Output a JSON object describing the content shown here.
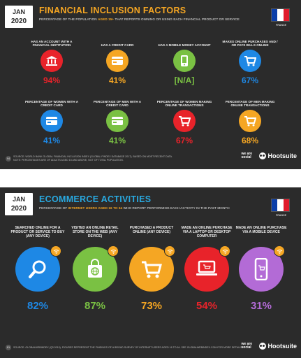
{
  "slide1": {
    "date_month": "JAN",
    "date_year": "2020",
    "title": "FINANCIAL INCLUSION FACTORS",
    "subtitle_a": "PERCENTAGE OF THE POPULATION ",
    "subtitle_hl": "AGED 15+",
    "subtitle_b": " THAT REPORTS OWNING OR USING EACH FINANCIAL PRODUCT OR SERVICE",
    "flag_label": "FRANCE",
    "items": [
      {
        "label": "HAS AN ACCOUNT WITH A FINANCIAL INSTITUTION",
        "value": "94%",
        "icon": "bank-icon",
        "color": "#e8232a"
      },
      {
        "label": "HAS A CREDIT CARD",
        "value": "41%",
        "icon": "credit-card-icon",
        "color": "#f5a623"
      },
      {
        "label": "HAS A MOBILE MONEY ACCOUNT",
        "value": "[N/A]",
        "icon": "mobile-money-icon",
        "color": "#7ac143"
      },
      {
        "label": "MAKES ONLINE PURCHASES AND / OR PAYS BILLS ONLINE",
        "value": "67%",
        "icon": "shopping-cart-icon",
        "color": "#1e88e5"
      },
      {
        "label": "PERCENTAGE OF WOMEN WITH A CREDIT CARD",
        "value": "41%",
        "icon": "credit-card-female-icon",
        "color": "#1e88e5"
      },
      {
        "label": "PERCENTAGE OF MEN WITH A CREDIT CARD",
        "value": "41%",
        "icon": "credit-card-male-icon",
        "color": "#7ac143"
      },
      {
        "label": "PERCENTAGE OF WOMEN MAKING ONLINE TRANSACTIONS",
        "value": "67%",
        "icon": "cart-female-icon",
        "color": "#e8232a"
      },
      {
        "label": "PERCENTAGE OF MEN MAKING ONLINE TRANSACTIONS",
        "value": "68%",
        "icon": "cart-male-icon",
        "color": "#f5a623"
      }
    ],
    "page_num": "94",
    "source_line1": "SOURCE: WORLD BANK GLOBAL FINANCIAL INCLUSION INDEX (GLOBAL FINDEX DATABASE 2017), BASED ON MOST RECENT DATA.",
    "source_line2": "NOTE: PERCENTAGES ARE OF ADULTS AGED 15 AND ABOVE, NOT OF TOTAL POPULATION.",
    "brand_was": "we are social",
    "brand_hootsuite": "Hootsuite"
  },
  "slide2": {
    "date_month": "JAN",
    "date_year": "2020",
    "title": "ECOMMERCE ACTIVITIES",
    "subtitle_a": "PERCENTAGE OF ",
    "subtitle_hl": "INTERNET USERS AGED 16 TO 64",
    "subtitle_b": " WHO REPORT PERFORMING EACH ACTIVITY IN THE PAST MONTH",
    "flag_label": "FRANCE",
    "items": [
      {
        "label": "SEARCHED ONLINE FOR A PRODUCT OR SERVICE TO BUY (ANY DEVICE)",
        "value": "82%",
        "icon": "search-icon",
        "color": "#1e88e5",
        "inner": "#1565c0"
      },
      {
        "label": "VISITED AN ONLINE RETAIL STORE ON THE WEB (ANY DEVICE)",
        "value": "87%",
        "icon": "shopping-bag-icon",
        "color": "#7ac143",
        "inner": "#5a9e2e"
      },
      {
        "label": "PURCHASED A PRODUCT ONLINE (ANY DEVICE)",
        "value": "73%",
        "icon": "shopping-cart-icon",
        "color": "#f5a623",
        "inner": "#e58e0b"
      },
      {
        "label": "MADE AN ONLINE PURCHASE VIA A LAPTOP OR DESKTOP COMPUTER",
        "value": "54%",
        "icon": "laptop-icon",
        "color": "#e8232a",
        "inner": "#c0161d"
      },
      {
        "label": "MADE AN ONLINE PURCHASE VIA A MOBILE DEVICE",
        "value": "31%",
        "icon": "mobile-phone-icon",
        "color": "#b36bd6",
        "inner": "#9550b8"
      }
    ],
    "page_num": "81",
    "source_line1": "SOURCE: GLOBALWEBINDEX (Q3 2019). FIGURES REPRESENT THE FINDINGS OF A BROAD SURVEY OF INTERNET USERS AGED 16 TO 64. SEE GLOBALWEBINDEX.COM FOR MORE DETAILS.",
    "brand_was": "we are social",
    "brand_hootsuite": "Hootsuite"
  }
}
